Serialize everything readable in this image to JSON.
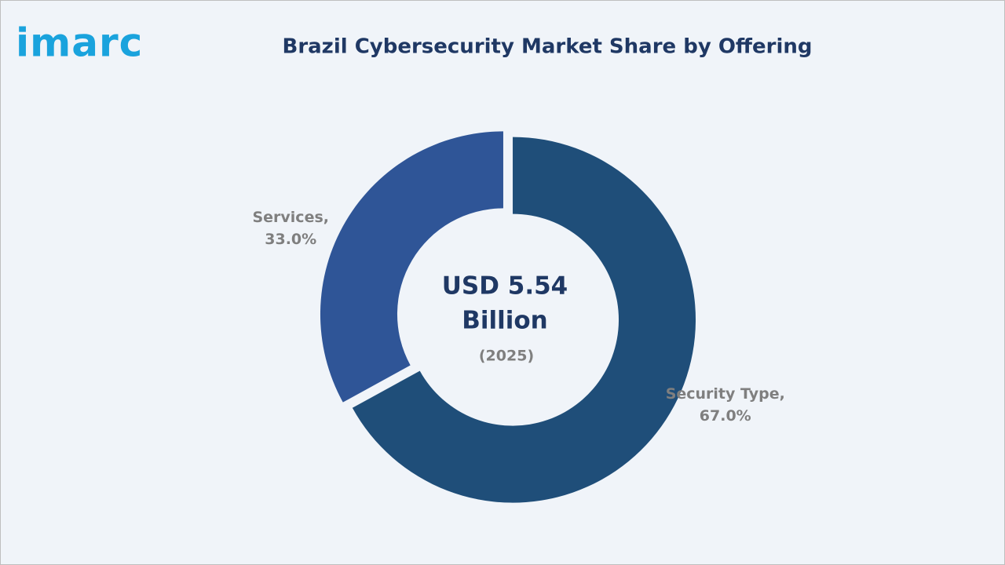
{
  "logo": "imarc",
  "chart_data": {
    "type": "donut",
    "title": "Brazil Cybersecurity Market Share by Offering",
    "categories": [
      "Security Type,",
      "Services,"
    ],
    "values": [
      67.0,
      33.0
    ],
    "value_labels": [
      "67.0%",
      "33.0%"
    ],
    "colors": [
      "#1f4e79",
      "#2f5597"
    ],
    "center_label": [
      "USD 5.54",
      "Billion"
    ],
    "center_sublabel": "(2025)"
  }
}
